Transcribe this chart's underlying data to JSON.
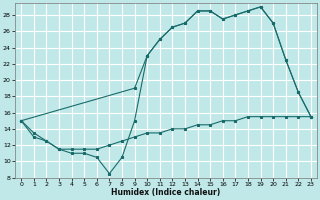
{
  "xlabel": "Humidex (Indice chaleur)",
  "background_color": "#c0e8e8",
  "grid_color": "#ffffff",
  "line_color": "#1a6b6b",
  "xlim": [
    -0.5,
    23.5
  ],
  "ylim": [
    8,
    29.5
  ],
  "xticks": [
    0,
    1,
    2,
    3,
    4,
    5,
    6,
    7,
    8,
    9,
    10,
    11,
    12,
    13,
    14,
    15,
    16,
    17,
    18,
    19,
    20,
    21,
    22,
    23
  ],
  "yticks": [
    8,
    10,
    12,
    14,
    16,
    18,
    20,
    22,
    24,
    26,
    28
  ],
  "series1_x": [
    0,
    1,
    2,
    3,
    4,
    5,
    6,
    7,
    8,
    9,
    10,
    11,
    12,
    13,
    14,
    15,
    16,
    17,
    18,
    19,
    20,
    21,
    22,
    23
  ],
  "series1_y": [
    15.0,
    13.5,
    12.5,
    11.5,
    11.0,
    11.0,
    10.5,
    8.5,
    10.5,
    15.0,
    23.0,
    25.0,
    26.5,
    27.0,
    28.5,
    28.5,
    27.5,
    28.0,
    28.5,
    29.0,
    27.0,
    22.5,
    18.5,
    15.5
  ],
  "series2_x": [
    0,
    9,
    10,
    11,
    12,
    13,
    14,
    15,
    16,
    17,
    18,
    19,
    20,
    21,
    22,
    23
  ],
  "series2_y": [
    15.0,
    19.0,
    23.0,
    25.0,
    26.5,
    27.0,
    28.5,
    28.5,
    27.5,
    28.0,
    28.5,
    29.0,
    27.0,
    22.5,
    18.5,
    15.5
  ],
  "series3_x": [
    0,
    1,
    2,
    3,
    4,
    5,
    6,
    7,
    8,
    9,
    10,
    11,
    12,
    13,
    14,
    15,
    16,
    17,
    18,
    19,
    20,
    21,
    22,
    23
  ],
  "series3_y": [
    15.0,
    13.0,
    12.5,
    11.5,
    11.5,
    11.5,
    11.5,
    12.0,
    12.5,
    13.0,
    13.5,
    13.5,
    14.0,
    14.0,
    14.5,
    14.5,
    15.0,
    15.0,
    15.5,
    15.5,
    15.5,
    15.5,
    15.5,
    15.5
  ]
}
